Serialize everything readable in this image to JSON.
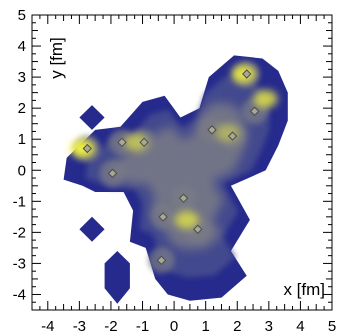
{
  "chart_data": {
    "type": "heatmap",
    "title": "",
    "xlabel": "x [fm]",
    "ylabel": "y [fm]",
    "xlim": [
      -4.5,
      5
    ],
    "ylim": [
      -4.5,
      5
    ],
    "x_ticks": [
      "-4",
      "-3",
      "-2",
      "-1",
      "0",
      "1",
      "2",
      "3",
      "4",
      "5"
    ],
    "y_ticks": [
      "-4",
      "-3",
      "-2",
      "-1",
      "0",
      "1",
      "2",
      "3",
      "4",
      "5"
    ],
    "grid": false,
    "colors": {
      "background": "#ffffff",
      "outer": "#252a8c",
      "mid": "#4a4f8f",
      "inner": "#7a7b86",
      "hot": "#f0f040",
      "marker_fill": "#a9a992",
      "marker_stroke": "#4c4c4c"
    },
    "nucleons": [
      {
        "x": 2.3,
        "y": 3.1
      },
      {
        "x": 2.55,
        "y": 1.9
      },
      {
        "x": 1.2,
        "y": 1.3
      },
      {
        "x": 1.85,
        "y": 1.1
      },
      {
        "x": -2.75,
        "y": 0.7
      },
      {
        "x": -1.65,
        "y": 0.9
      },
      {
        "x": -0.95,
        "y": 0.9
      },
      {
        "x": -1.95,
        "y": -0.1
      },
      {
        "x": 0.3,
        "y": -0.9
      },
      {
        "x": -0.35,
        "y": -1.5
      },
      {
        "x": 0.75,
        "y": -1.9
      },
      {
        "x": -0.4,
        "y": -2.9
      }
    ],
    "hot_spots": [
      {
        "x": 2.2,
        "y": 3.1,
        "weight": 0.9
      },
      {
        "x": 2.9,
        "y": 2.3,
        "weight": 0.8
      },
      {
        "x": -2.9,
        "y": 0.7,
        "weight": 1.0
      },
      {
        "x": -1.2,
        "y": 0.9,
        "weight": 0.6
      },
      {
        "x": 0.4,
        "y": -1.6,
        "weight": 0.7
      },
      {
        "x": 1.7,
        "y": 1.2,
        "weight": 0.45
      }
    ],
    "regions": [
      {
        "name": "main",
        "points": [
          [
            0.5,
            -4.2
          ],
          [
            1.5,
            -4.1
          ],
          [
            2.3,
            -3.4
          ],
          [
            1.8,
            -2.6
          ],
          [
            2.4,
            -1.6
          ],
          [
            1.8,
            -0.5
          ],
          [
            2.9,
            0.0
          ],
          [
            3.3,
            0.8
          ],
          [
            3.6,
            1.6
          ],
          [
            3.6,
            2.5
          ],
          [
            3.3,
            3.2
          ],
          [
            2.8,
            3.6
          ],
          [
            1.9,
            3.7
          ],
          [
            1.1,
            3.0
          ],
          [
            0.8,
            2.0
          ],
          [
            0.2,
            1.7
          ],
          [
            -0.3,
            2.4
          ],
          [
            -1.0,
            2.2
          ],
          [
            -1.7,
            1.4
          ],
          [
            -2.5,
            1.3
          ],
          [
            -3.4,
            0.4
          ],
          [
            -3.5,
            -0.3
          ],
          [
            -2.9,
            -0.5
          ],
          [
            -2.5,
            -0.7
          ],
          [
            -1.6,
            -0.7
          ],
          [
            -1.3,
            -1.3
          ],
          [
            -1.4,
            -2.3
          ],
          [
            -0.9,
            -2.5
          ],
          [
            -0.6,
            -3.5
          ],
          [
            -0.2,
            -4.0
          ]
        ]
      },
      {
        "name": "island-left-upper",
        "points": [
          [
            -3.0,
            1.7
          ],
          [
            -2.6,
            2.1
          ],
          [
            -2.2,
            1.7
          ],
          [
            -2.6,
            1.3
          ]
        ]
      },
      {
        "name": "island-left-lower",
        "points": [
          [
            -3.0,
            -1.9
          ],
          [
            -2.6,
            -1.5
          ],
          [
            -2.2,
            -1.9
          ],
          [
            -2.6,
            -2.3
          ]
        ]
      },
      {
        "name": "island-bottom",
        "points": [
          [
            -2.2,
            -3.0
          ],
          [
            -1.8,
            -2.6
          ],
          [
            -1.4,
            -3.0
          ],
          [
            -1.4,
            -3.8
          ],
          [
            -1.8,
            -4.3
          ],
          [
            -2.2,
            -3.8
          ]
        ]
      }
    ]
  }
}
